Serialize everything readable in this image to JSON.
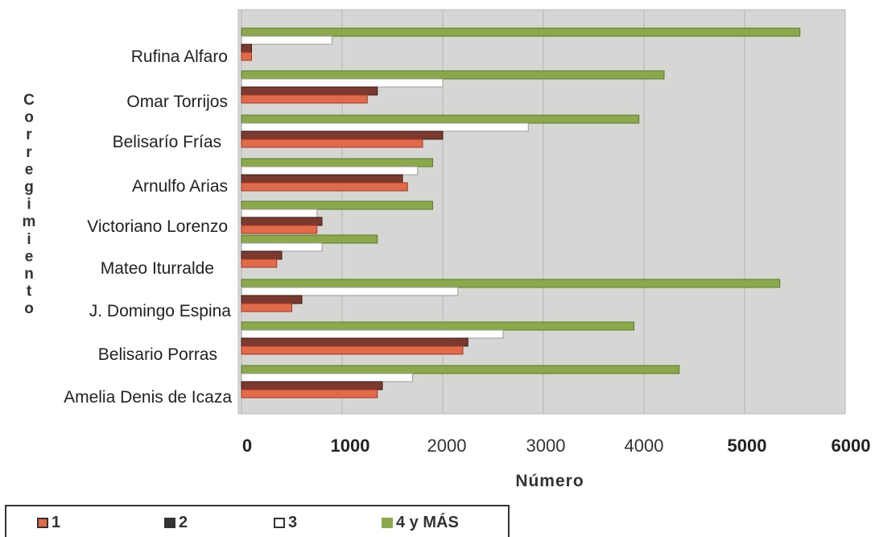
{
  "chart_data": {
    "type": "bar",
    "orientation": "horizontal",
    "title": "",
    "xlabel": "Número",
    "ylabel": "Corregimiento",
    "xlim": [
      0,
      6000
    ],
    "x_ticks": [
      "0",
      "1000",
      "2000",
      "3000",
      "4000",
      "5000",
      "6000"
    ],
    "grid": true,
    "legend_position": "bottom-left",
    "categories": [
      "Rufina  Alfaro",
      "Omar Torrijos",
      "Belisarío Frías",
      "Arnulfo Arias",
      "Victoriano Lorenzo",
      "Mateo Iturralde",
      "J. Domingo Espina",
      "Belisario Porras",
      "Amelia Denis de Icaza"
    ],
    "series": [
      {
        "name": "1",
        "color": "#e06a4a",
        "values": [
          100,
          1250,
          1800,
          1650,
          750,
          350,
          500,
          2200,
          1350
        ]
      },
      {
        "name": "2",
        "color": "#7a3a30",
        "values": [
          100,
          1350,
          2000,
          1600,
          800,
          400,
          600,
          2250,
          1400
        ]
      },
      {
        "name": "3",
        "color": "#ffffff",
        "values": [
          900,
          2000,
          2850,
          1750,
          750,
          800,
          2150,
          2600,
          1700
        ]
      },
      {
        "name": "4 y MÁS",
        "color": "#8ba84a",
        "values": [
          5550,
          4200,
          3950,
          1900,
          1900,
          1350,
          5350,
          3900,
          4350
        ]
      }
    ]
  },
  "legend": {
    "items": [
      {
        "label": "1",
        "color": "#e06a4a"
      },
      {
        "label": "2",
        "color": "#7a3a30"
      },
      {
        "label": "3",
        "color": "#ffffff"
      },
      {
        "label": "4 y MÁS",
        "color": "#8ba84a"
      }
    ]
  }
}
